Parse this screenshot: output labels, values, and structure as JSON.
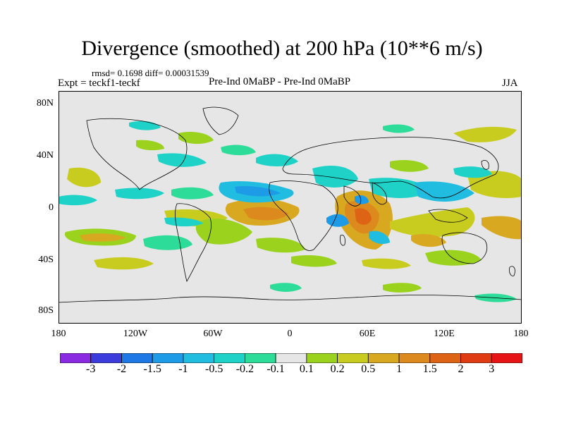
{
  "title": "Divergence (smoothed) at 200 hPa (10**6 m/s)",
  "stats": "rmsd= 0.1698 diff= 0.00031539",
  "experiment": "Expt = teckf1-teckf",
  "case": "Pre-Ind 0MaBP - Pre-Ind 0MaBP",
  "season": "JJA",
  "lat_labels": [
    "80N",
    "40N",
    "0",
    "40S",
    "80S"
  ],
  "lon_labels": [
    "180",
    "120W",
    "60W",
    "0",
    "60E",
    "120E",
    "180"
  ],
  "colorbar": {
    "colors": [
      "#8a2be2",
      "#3c3cdc",
      "#1e78e6",
      "#1e9be6",
      "#20bde0",
      "#1ed2c8",
      "#2edc9a",
      "#e6e6e6",
      "#9ad21e",
      "#c8cc1e",
      "#d8a820",
      "#dc8a1e",
      "#dc6414",
      "#e03c14",
      "#e61414"
    ],
    "labels": [
      "-3",
      "-2",
      "-1.5",
      "-1",
      "-0.5",
      "-0.2",
      "-0.1",
      "0.1",
      "0.2",
      "0.5",
      "1",
      "1.5",
      "2",
      "3"
    ]
  },
  "colors": {
    "background": "#e6e6e6",
    "coastline": "#000000"
  }
}
